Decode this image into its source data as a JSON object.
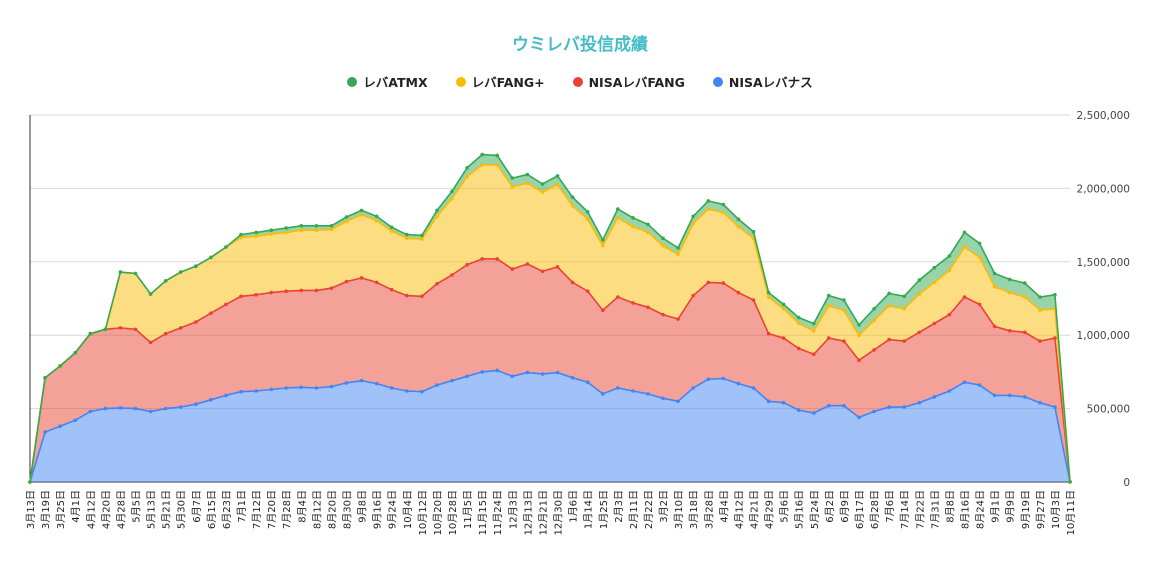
{
  "chart_data": {
    "type": "area",
    "stacked": true,
    "title": "ウミレバ投信成績",
    "xlabel": "",
    "ylabel": "",
    "ylim": [
      0,
      2500000
    ],
    "y_ticks": [
      0,
      500000,
      1000000,
      1500000,
      2000000,
      2500000
    ],
    "y_tick_labels": [
      "0",
      "500,000",
      "1,000,000",
      "1,500,000",
      "2,000,000",
      "2,500,000"
    ],
    "grid": true,
    "legend_position": "top-center",
    "categories": [
      "3月13日",
      "3月19日",
      "3月25日",
      "4月1日",
      "4月12日",
      "4月20日",
      "4月28日",
      "5月5日",
      "5月13日",
      "5月21日",
      "5月30日",
      "6月7日",
      "6月15日",
      "6月23日",
      "7月1日",
      "7月12日",
      "7月20日",
      "7月28日",
      "8月4日",
      "8月12日",
      "8月20日",
      "8月30日",
      "9月8日",
      "9月16日",
      "9月24日",
      "10月4日",
      "10月12日",
      "10月20日",
      "10月28日",
      "11月5日",
      "11月15日",
      "11月24日",
      "12月3日",
      "12月13日",
      "12月21日",
      "12月30日",
      "1月6日",
      "1月14日",
      "1月25日",
      "2月3日",
      "2月11日",
      "2月22日",
      "3月2日",
      "3月10日",
      "3月18日",
      "3月28日",
      "4月4日",
      "4月12日",
      "4月21日",
      "4月29日",
      "5月6日",
      "5月16日",
      "5月24日",
      "6月2日",
      "6月9日",
      "6月17日",
      "6月28日",
      "7月6日",
      "7月14日",
      "7月22日",
      "7月31日",
      "8月8日",
      "8月16日",
      "8月24日",
      "9月1日",
      "9月9日",
      "9月19日",
      "9月27日",
      "10月3日",
      "10月11日"
    ],
    "series": [
      {
        "name": "NISAレバナス",
        "color": "#4285f4",
        "values": [
          0,
          340000,
          380000,
          420000,
          480000,
          500000,
          505000,
          500000,
          480000,
          500000,
          510000,
          530000,
          560000,
          590000,
          615000,
          620000,
          630000,
          640000,
          645000,
          640000,
          650000,
          675000,
          690000,
          670000,
          640000,
          620000,
          615000,
          660000,
          690000,
          720000,
          750000,
          760000,
          720000,
          745000,
          735000,
          745000,
          710000,
          680000,
          600000,
          640000,
          620000,
          600000,
          570000,
          550000,
          640000,
          700000,
          705000,
          670000,
          640000,
          550000,
          540000,
          490000,
          470000,
          520000,
          520000,
          440000,
          480000,
          510000,
          510000,
          540000,
          580000,
          620000,
          680000,
          660000,
          590000,
          590000,
          580000,
          540000,
          510000,
          500
        ]
      },
      {
        "name": "NISAレバFANG",
        "color": "#ea4335",
        "values": [
          0,
          370000,
          410000,
          460000,
          530000,
          540000,
          545000,
          540000,
          470000,
          510000,
          540000,
          560000,
          590000,
          620000,
          650000,
          655000,
          660000,
          660000,
          660000,
          665000,
          670000,
          690000,
          700000,
          690000,
          670000,
          650000,
          650000,
          690000,
          720000,
          760000,
          770000,
          760000,
          730000,
          740000,
          700000,
          720000,
          650000,
          620000,
          570000,
          620000,
          600000,
          590000,
          570000,
          560000,
          630000,
          660000,
          650000,
          620000,
          600000,
          460000,
          440000,
          420000,
          400000,
          460000,
          440000,
          390000,
          420000,
          460000,
          450000,
          480000,
          500000,
          520000,
          580000,
          550000,
          470000,
          440000,
          440000,
          420000,
          470000,
          430
        ]
      },
      {
        "name": "レバFANG+",
        "color": "#fbbc04",
        "values": [
          0,
          0,
          0,
          0,
          0,
          0,
          380000,
          380000,
          330000,
          360000,
          380000,
          380000,
          380000,
          390000,
          400000,
          400000,
          400000,
          400000,
          410000,
          410000,
          400000,
          410000,
          430000,
          420000,
          400000,
          390000,
          390000,
          460000,
          520000,
          600000,
          640000,
          640000,
          560000,
          550000,
          540000,
          560000,
          520000,
          490000,
          440000,
          540000,
          520000,
          510000,
          470000,
          440000,
          490000,
          500000,
          480000,
          450000,
          420000,
          250000,
          200000,
          170000,
          160000,
          220000,
          210000,
          170000,
          200000,
          230000,
          220000,
          260000,
          280000,
          300000,
          340000,
          320000,
          270000,
          260000,
          240000,
          210000,
          200000,
          190
        ]
      },
      {
        "name": "レバATMX",
        "color": "#34a853",
        "values": [
          0,
          0,
          0,
          0,
          0,
          0,
          0,
          0,
          0,
          0,
          0,
          0,
          0,
          0,
          20000,
          25000,
          25000,
          30000,
          30000,
          30000,
          25000,
          30000,
          30000,
          30000,
          25000,
          25000,
          25000,
          40000,
          50000,
          60000,
          70000,
          65000,
          60000,
          60000,
          55000,
          60000,
          60000,
          50000,
          40000,
          60000,
          60000,
          55000,
          50000,
          45000,
          50000,
          55000,
          55000,
          50000,
          45000,
          30000,
          30000,
          40000,
          50000,
          70000,
          70000,
          70000,
          80000,
          85000,
          85000,
          95000,
          100000,
          100000,
          100000,
          95000,
          90000,
          90000,
          95000,
          90000,
          95000,
          90
        ]
      }
    ]
  }
}
